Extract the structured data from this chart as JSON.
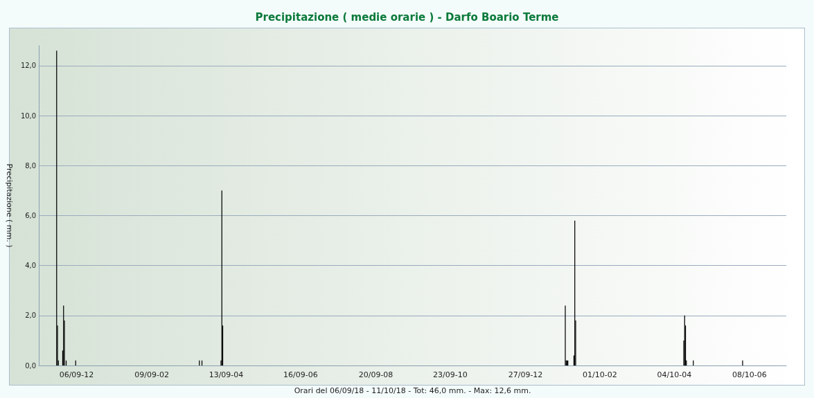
{
  "chart_data": {
    "type": "bar",
    "title": "Precipitazione ( medie orarie ) - Darfo Boario Terme",
    "xlabel": "Orari del 06/09/18 - 11/10/18 - Tot: 46,0 mm. - Max: 12,6 mm.",
    "ylabel": "Precipitazione ( mm. )",
    "categories": [
      null,
      null,
      null,
      null,
      null,
      null,
      null,
      null,
      null,
      null,
      null,
      null,
      null,
      null,
      null,
      null,
      null,
      null,
      null,
      null,
      null,
      null,
      null,
      null,
      null,
      null,
      null,
      null,
      null,
      null,
      null,
      null,
      null,
      null,
      null,
      null,
      null,
      null,
      null,
      null,
      null,
      null,
      null,
      "06/09-12",
      null,
      null,
      null,
      null,
      null,
      null,
      null,
      null,
      null,
      null,
      null,
      null,
      null,
      null,
      null,
      null,
      null,
      null,
      null,
      null,
      null,
      null,
      null,
      null,
      null,
      null,
      null,
      null,
      null,
      null,
      null,
      null,
      null,
      null,
      null,
      null,
      null,
      null,
      null,
      null,
      null,
      null,
      null,
      null,
      null,
      null,
      null,
      null,
      null,
      null,
      null,
      null,
      null,
      null,
      null,
      null,
      null,
      null,
      null,
      null,
      null,
      null,
      null,
      null,
      null,
      null,
      null,
      null,
      null,
      null,
      null,
      null,
      null,
      null,
      null,
      null,
      null,
      null,
      null,
      null,
      null,
      null,
      null,
      null,
      null,
      null,
      "09/09-02",
      null,
      null,
      null,
      null,
      null,
      null,
      null,
      null,
      null,
      null,
      null,
      null,
      null,
      null,
      null,
      null,
      null,
      null,
      null,
      null,
      null,
      null,
      null,
      null,
      null,
      null,
      null,
      null,
      null,
      null,
      null,
      null,
      null,
      null,
      null,
      null,
      null,
      null,
      null,
      null,
      null,
      null,
      null,
      null,
      null,
      null,
      null,
      null,
      null,
      null,
      null,
      null,
      null,
      null,
      null,
      null,
      null,
      null,
      null,
      null,
      null,
      null,
      null,
      null,
      null,
      null,
      null,
      null,
      null,
      null,
      null,
      null,
      null,
      null,
      null,
      null,
      null,
      null,
      null,
      null,
      null,
      null,
      null,
      null,
      null,
      "13/09-04",
      null,
      null,
      null,
      null,
      null,
      null,
      null,
      null,
      null,
      null,
      null,
      null,
      null,
      null,
      null,
      null,
      null,
      null,
      null,
      null,
      null,
      null,
      null,
      null,
      null,
      null,
      null,
      null,
      null,
      null,
      null,
      null,
      null,
      null,
      null,
      null,
      null,
      null,
      null,
      null,
      null,
      null,
      null,
      null,
      null,
      null,
      null,
      null,
      null,
      null,
      null,
      null,
      null,
      null,
      null,
      null,
      null,
      null,
      null,
      null,
      null,
      null,
      null,
      null,
      null,
      null,
      null,
      null,
      null,
      null,
      null,
      null,
      null,
      null,
      null,
      null,
      null,
      null,
      null,
      null,
      null,
      null,
      null,
      null,
      null,
      "16/09-06",
      null,
      null,
      null,
      null,
      null,
      null,
      null,
      null,
      null,
      null,
      null,
      null,
      null,
      null,
      null,
      null,
      null,
      null,
      null,
      null,
      null,
      null,
      null,
      null,
      null,
      null,
      null,
      null,
      null,
      null,
      null,
      null,
      null,
      null,
      null,
      null,
      null,
      null,
      null,
      null,
      null,
      null,
      null,
      null,
      null,
      null,
      null,
      null,
      null,
      null,
      null,
      null,
      null,
      null,
      null,
      null,
      null,
      null,
      null,
      null,
      null,
      null,
      null,
      null,
      null,
      null,
      null,
      null,
      null,
      null,
      null,
      null,
      null,
      null,
      null,
      null,
      null,
      null,
      null,
      null,
      null,
      null,
      null,
      null,
      null,
      null,
      "20/09-08",
      null,
      null,
      null,
      null,
      null,
      null,
      null,
      null,
      null,
      null,
      null,
      null,
      null,
      null,
      null,
      null,
      null,
      null,
      null,
      null,
      null,
      null,
      null,
      null,
      null,
      null,
      null,
      null,
      null,
      null,
      null,
      null,
      null,
      null,
      null,
      null,
      null,
      null,
      null,
      null,
      null,
      null,
      null,
      null,
      null,
      null,
      null,
      null,
      null,
      null,
      null,
      null,
      null,
      null,
      null,
      null,
      null,
      null,
      null,
      null,
      null,
      null,
      null,
      null,
      null,
      null,
      null,
      null,
      null,
      null,
      null,
      null,
      null,
      null,
      null,
      null,
      null,
      null,
      null,
      null,
      null,
      null,
      null,
      null,
      null,
      "23/09-10",
      null,
      null,
      null,
      null,
      null,
      null,
      null,
      null,
      null,
      null,
      null,
      null,
      null,
      null,
      null,
      null,
      null,
      null,
      null,
      null,
      null,
      null,
      null,
      null,
      null,
      null,
      null,
      null,
      null,
      null,
      null,
      null,
      null,
      null,
      null,
      null,
      null,
      null,
      null,
      null,
      null,
      null,
      null,
      null,
      null,
      null,
      null,
      null,
      null,
      null,
      null,
      null,
      null,
      null,
      null,
      null,
      null,
      null,
      null,
      null,
      null,
      null,
      null,
      null,
      null,
      null,
      null,
      null,
      null,
      null,
      null,
      null,
      null,
      null,
      null,
      null,
      null,
      null,
      null,
      null,
      null,
      null,
      null,
      null,
      null,
      null,
      "27/09-12",
      null,
      null,
      null,
      null,
      null,
      null,
      null,
      null,
      null,
      null,
      null,
      null,
      null,
      null,
      null,
      null,
      null,
      null,
      null,
      null,
      null,
      null,
      null,
      null,
      null,
      null,
      null,
      null,
      null,
      null,
      null,
      null,
      null,
      null,
      null,
      null,
      null,
      null,
      null,
      null,
      null,
      null,
      null,
      null,
      null,
      null,
      null,
      null,
      null,
      null,
      null,
      null,
      null,
      null,
      null,
      null,
      null,
      null,
      null,
      null,
      null,
      null,
      null,
      null,
      null,
      null,
      null,
      null,
      null,
      null,
      null,
      null,
      null,
      null,
      null,
      null,
      null,
      null,
      null,
      null,
      null,
      null,
      null,
      null,
      null,
      "01/10-02",
      null,
      null,
      null,
      null,
      null,
      null,
      null,
      null,
      null,
      null,
      null,
      null,
      null,
      null,
      null,
      null,
      null,
      null,
      null,
      null,
      null,
      null,
      null,
      null,
      null,
      null,
      null,
      null,
      null,
      null,
      null,
      null,
      null,
      null,
      null,
      null,
      null,
      null,
      null,
      null,
      null,
      null,
      null,
      null,
      null,
      null,
      null,
      null,
      null,
      null,
      null,
      null,
      null,
      null,
      null,
      null,
      null,
      null,
      null,
      null,
      null,
      null,
      null,
      null,
      null,
      null,
      null,
      null,
      null,
      null,
      null,
      null,
      null,
      null,
      null,
      null,
      null,
      null,
      null,
      null,
      null,
      null,
      null,
      null,
      null,
      "04/10-04",
      null,
      null,
      null,
      null,
      null,
      null,
      null,
      null,
      null,
      null,
      null,
      null,
      null,
      null,
      null,
      null,
      null,
      null,
      null,
      null,
      null,
      null,
      null,
      null,
      null,
      null,
      null,
      null,
      null,
      null,
      null,
      null,
      null,
      null,
      null,
      null,
      null,
      null,
      null,
      null,
      null,
      null,
      null,
      null,
      null,
      null,
      null,
      null,
      null,
      null,
      null,
      null,
      null,
      null,
      null,
      null,
      null,
      null,
      null,
      null,
      null,
      null,
      null,
      null,
      null,
      null,
      null,
      null,
      null,
      null,
      null,
      null,
      null,
      null,
      null,
      null,
      null,
      null,
      null,
      null,
      null,
      null,
      null,
      null,
      null,
      null,
      "08/10-06",
      null,
      null,
      null,
      null,
      null,
      null,
      null,
      null,
      null,
      null,
      null,
      null,
      null,
      null,
      null,
      null,
      null,
      null,
      null,
      null,
      null,
      null,
      null,
      null,
      null,
      null,
      null,
      null,
      null,
      null,
      null,
      null,
      null,
      null,
      null,
      null,
      null,
      null,
      null,
      null,
      null,
      null
    ],
    "values": [
      0,
      0,
      0,
      0,
      0,
      0,
      0,
      0,
      0,
      0,
      0,
      0,
      0,
      0,
      0,
      0,
      0,
      0,
      0,
      0,
      12.6,
      1.6,
      0.2,
      0,
      0,
      0,
      0,
      0.6,
      2.4,
      1.8,
      0,
      0.2,
      0,
      0,
      0,
      0,
      0,
      0,
      0,
      0,
      0,
      0,
      0.2,
      0,
      0,
      0,
      0,
      0,
      0,
      0,
      0,
      0,
      0,
      0,
      0,
      0,
      0,
      0,
      0,
      0,
      0,
      0,
      0,
      0,
      0,
      0,
      0,
      0,
      0,
      0,
      0,
      0,
      0,
      0,
      0,
      0,
      0,
      0,
      0,
      0,
      0,
      0,
      0,
      0,
      0,
      0,
      0,
      0,
      0,
      0,
      0,
      0,
      0,
      0,
      0,
      0,
      0,
      0,
      0,
      0,
      0,
      0,
      0,
      0,
      0,
      0,
      0,
      0,
      0,
      0,
      0,
      0,
      0,
      0,
      0,
      0,
      0,
      0,
      0,
      0,
      0,
      0,
      0,
      0,
      0,
      0,
      0,
      0,
      0,
      0,
      0,
      0,
      0,
      0,
      0,
      0,
      0,
      0,
      0,
      0,
      0,
      0,
      0,
      0,
      0,
      0,
      0,
      0,
      0,
      0,
      0,
      0,
      0,
      0,
      0,
      0,
      0,
      0,
      0,
      0,
      0,
      0,
      0,
      0,
      0,
      0,
      0,
      0,
      0,
      0,
      0,
      0,
      0,
      0,
      0,
      0,
      0,
      0,
      0,
      0,
      0,
      0,
      0,
      0,
      0,
      0.2,
      0,
      0,
      0.2,
      0,
      0,
      0,
      0,
      0,
      0,
      0,
      0,
      0,
      0,
      0,
      0,
      0,
      0,
      0,
      0,
      0,
      0,
      0,
      0,
      0,
      0.2,
      7.0,
      1.6,
      0,
      0,
      0,
      0,
      0,
      0,
      0,
      0,
      0,
      0,
      0,
      0,
      0,
      0,
      0,
      0,
      0,
      0,
      0,
      0,
      0,
      0,
      0,
      0,
      0,
      0,
      0,
      0,
      0,
      0,
      0,
      0,
      0,
      0,
      0,
      0,
      0,
      0,
      0,
      0,
      0,
      0,
      0,
      0,
      0,
      0,
      0,
      0,
      0,
      0,
      0,
      0,
      0,
      0,
      0,
      0,
      0,
      0,
      0,
      0,
      0,
      0,
      0,
      0,
      0,
      0,
      0,
      0,
      0,
      0,
      0,
      0,
      0,
      0,
      0,
      0,
      0,
      0,
      0,
      0,
      0,
      0,
      0,
      0,
      0,
      0,
      0,
      0,
      0,
      0,
      0,
      0,
      0,
      0,
      0,
      0,
      0,
      0,
      0,
      0,
      0,
      0,
      0,
      0,
      0,
      0,
      0,
      0,
      0,
      0,
      0,
      0,
      0,
      0,
      0,
      0,
      0,
      0,
      0,
      0,
      0,
      0,
      0,
      0,
      0,
      0,
      0,
      0,
      0,
      0,
      0,
      0,
      0,
      0,
      0,
      0,
      0,
      0,
      0,
      0,
      0,
      0,
      0,
      0,
      0,
      0,
      0,
      0,
      0,
      0,
      0,
      0,
      0,
      0,
      0,
      0,
      0,
      0,
      0,
      0,
      0,
      0,
      0,
      0,
      0,
      0,
      0,
      0,
      0,
      0,
      0,
      0,
      0,
      0,
      0,
      0,
      0,
      0,
      0,
      0,
      0,
      0,
      0,
      0,
      0,
      0,
      0,
      0,
      0,
      0,
      0,
      0,
      0,
      0,
      0,
      0,
      0,
      0,
      0,
      0,
      0,
      0,
      0,
      0,
      0,
      0,
      0,
      0,
      0,
      0,
      0,
      0,
      0,
      0,
      0,
      0,
      0,
      0,
      0,
      0,
      0,
      0,
      0,
      0,
      0,
      0,
      0,
      0,
      0,
      0,
      0,
      0,
      0,
      0,
      0,
      0,
      0,
      0,
      0,
      0,
      0,
      0,
      0,
      0,
      0,
      0,
      0,
      0,
      0,
      0,
      0,
      0,
      0,
      0,
      0,
      0,
      0,
      0,
      0,
      0,
      0,
      0,
      0,
      0,
      0,
      0,
      0,
      0,
      0,
      0,
      0,
      0,
      0,
      0,
      0,
      0,
      0,
      0,
      0,
      0,
      0,
      0,
      0,
      0,
      0,
      0,
      0,
      0,
      0,
      0,
      0,
      0,
      0,
      0,
      0,
      0,
      0,
      0,
      0,
      0,
      0,
      0,
      0,
      0,
      0,
      0,
      0,
      0,
      0,
      0,
      0,
      0,
      0,
      0,
      0,
      0,
      0,
      0,
      0,
      0,
      0,
      0,
      0,
      0,
      0,
      0,
      0,
      0,
      0,
      0,
      0,
      0,
      0,
      0,
      0,
      0,
      0,
      0,
      0,
      0,
      0,
      0,
      0,
      0,
      0,
      0,
      0,
      0,
      0,
      0,
      0,
      0,
      0,
      0,
      0,
      0,
      0,
      0,
      0,
      0,
      0,
      0,
      0,
      0,
      0,
      0,
      0,
      0,
      0,
      0,
      0,
      0,
      0,
      0,
      0,
      0,
      0,
      0,
      0,
      0,
      0,
      0,
      0,
      0,
      0,
      0,
      0,
      0,
      0,
      0,
      0,
      0,
      0,
      0,
      0,
      2.4,
      0.2,
      0.2,
      0.2,
      0,
      0,
      0,
      0,
      0,
      0,
      0.4,
      5.8,
      1.8,
      0,
      0,
      0,
      0,
      0,
      0,
      0,
      0,
      0,
      0,
      0,
      0,
      0,
      0,
      0,
      0,
      0,
      0,
      0,
      0,
      0,
      0,
      0,
      0,
      0,
      0,
      0,
      0,
      0,
      0,
      0,
      0,
      0,
      0,
      0,
      0,
      0,
      0,
      0,
      0,
      0,
      0,
      0,
      0,
      0,
      0,
      0,
      0,
      0,
      0,
      0,
      0,
      0,
      0,
      0,
      0,
      0,
      0,
      0,
      0,
      0,
      0,
      0,
      0,
      0,
      0,
      0,
      0,
      0,
      0,
      0,
      0,
      0,
      0,
      0,
      0,
      0,
      0,
      0,
      0,
      0,
      0,
      0,
      0,
      0,
      0,
      0,
      0,
      0,
      0,
      0,
      0,
      0,
      0,
      0,
      0,
      0,
      0,
      0,
      0,
      0,
      0,
      0,
      0,
      0,
      0,
      0,
      0,
      0,
      0,
      0,
      0,
      0,
      0,
      0,
      0,
      0,
      0,
      0,
      0,
      0,
      0,
      0,
      0,
      1.0,
      2.0,
      1.6,
      0.2,
      0,
      0,
      0,
      0,
      0,
      0,
      0,
      0.2,
      0,
      0,
      0,
      0,
      0,
      0,
      0,
      0,
      0,
      0,
      0,
      0,
      0,
      0,
      0,
      0,
      0,
      0,
      0,
      0,
      0,
      0,
      0,
      0,
      0,
      0,
      0,
      0,
      0,
      0,
      0,
      0,
      0,
      0,
      0,
      0,
      0,
      0,
      0,
      0,
      0,
      0,
      0,
      0,
      0,
      0,
      0,
      0,
      0,
      0,
      0,
      0,
      0,
      0,
      0,
      0,
      0.2,
      0,
      0,
      0,
      0,
      0,
      0,
      0,
      0,
      0,
      0,
      0,
      0,
      0,
      0,
      0,
      0,
      0,
      0,
      0,
      0,
      0,
      0,
      0,
      0,
      0,
      0,
      0,
      0,
      0,
      0,
      0,
      0,
      0,
      0,
      0,
      0,
      0,
      0,
      0,
      0,
      0,
      0,
      0,
      0,
      0,
      0,
      0,
      0,
      0,
      0
    ],
    "color": "#000000",
    "ylim": [
      0,
      12.8
    ],
    "yticks": [
      {
        "value": 0,
        "label": "0,0"
      },
      {
        "value": 2,
        "label": "2,0"
      },
      {
        "value": 4,
        "label": "4,0"
      },
      {
        "value": 6,
        "label": "6,0"
      },
      {
        "value": 8,
        "label": "8,0"
      },
      {
        "value": 10,
        "label": "10,0"
      },
      {
        "value": 12,
        "label": "12,0"
      }
    ],
    "grid": "y"
  }
}
